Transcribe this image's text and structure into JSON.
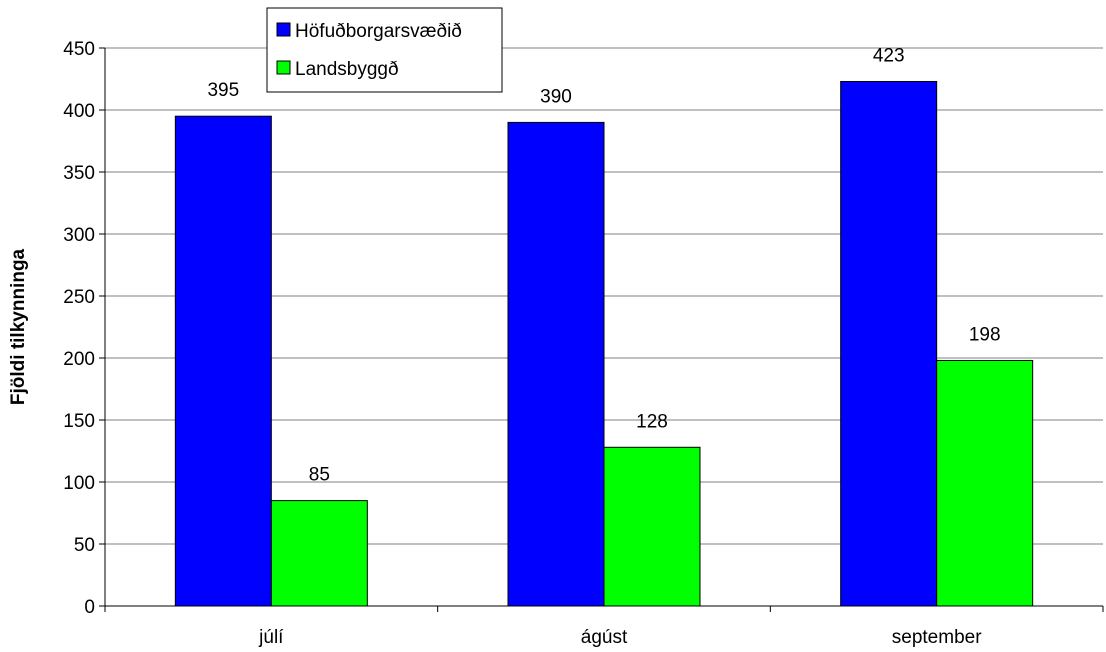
{
  "chart_data": {
    "type": "bar",
    "title": "",
    "xlabel": "",
    "ylabel": "Fjöldi tilkynninga",
    "categories": [
      "júlí",
      "ágúst",
      "september"
    ],
    "series": [
      {
        "name": "Höfuðborgarsvæðið",
        "values": [
          395,
          390,
          423
        ],
        "color": "#0000ff"
      },
      {
        "name": "Landsbyggð",
        "values": [
          85,
          128,
          198
        ],
        "color": "#00ff00"
      }
    ],
    "ylim": [
      0,
      450
    ],
    "yticks": [
      0,
      50,
      100,
      150,
      200,
      250,
      300,
      350,
      400,
      450
    ],
    "grid": true,
    "legend_position": "top-left"
  }
}
